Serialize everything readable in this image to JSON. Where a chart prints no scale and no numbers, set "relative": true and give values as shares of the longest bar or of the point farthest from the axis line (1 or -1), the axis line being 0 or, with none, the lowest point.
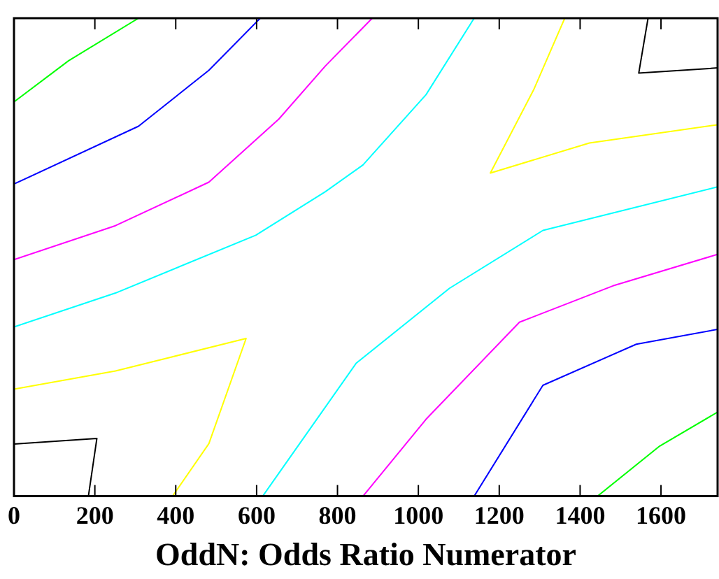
{
  "chart_data": {
    "type": "line",
    "xlabel": "OddN: Odds Ratio Numerator",
    "relative": true,
    "xlim": [
      0,
      1740
    ],
    "xticks": [
      0,
      200,
      400,
      600,
      800,
      1000,
      1200,
      1400,
      1600
    ],
    "grid": false,
    "legend": false,
    "series": [
      {
        "color": "#00ff00",
        "x": [
          0,
          135,
          308
        ],
        "values": [
          0.825,
          0.911,
          1
        ]
      },
      {
        "color": "#00ff00",
        "x": [
          1443,
          1597,
          1740
        ],
        "values": [
          0,
          0.105,
          0.176
        ]
      },
      {
        "color": "#0000ff",
        "x": [
          0,
          308,
          482,
          609
        ],
        "values": [
          0.653,
          0.774,
          0.891,
          1
        ]
      },
      {
        "color": "#0000ff",
        "x": [
          1138,
          1308,
          1539,
          1740
        ],
        "values": [
          0,
          0.232,
          0.318,
          0.349
        ]
      },
      {
        "color": "#ff00ff",
        "x": [
          0,
          251,
          482,
          655,
          770,
          886
        ],
        "values": [
          0.495,
          0.566,
          0.657,
          0.789,
          0.9,
          1
        ]
      },
      {
        "color": "#ff00ff",
        "x": [
          863,
          1019,
          1250,
          1481,
          1740
        ],
        "values": [
          0,
          0.161,
          0.364,
          0.44,
          0.506
        ]
      },
      {
        "color": "#00ffff",
        "x": [
          0,
          251,
          598,
          770,
          863,
          1019,
          1138
        ],
        "values": [
          0.354,
          0.425,
          0.546,
          0.637,
          0.693,
          0.84,
          1
        ]
      },
      {
        "color": "#00ffff",
        "x": [
          615,
          846,
          1077,
          1308,
          1740
        ],
        "values": [
          0,
          0.278,
          0.435,
          0.556,
          0.647
        ]
      },
      {
        "color": "#ffff00",
        "x": [
          0,
          251,
          574,
          482,
          392
        ],
        "values": [
          0.224,
          0.262,
          0.33,
          0.11,
          0
        ]
      },
      {
        "color": "#ffff00",
        "x": [
          1362,
          1285,
          1178,
          1423,
          1740
        ],
        "values": [
          1,
          0.85,
          0.676,
          0.739,
          0.777
        ]
      },
      {
        "color": "#000000",
        "x": [
          0,
          205,
          184
        ],
        "values": [
          0.109,
          0.121,
          0
        ]
      },
      {
        "color": "#000000",
        "x": [
          1568,
          1545,
          1740
        ],
        "values": [
          1,
          0.885,
          0.896
        ]
      }
    ]
  }
}
